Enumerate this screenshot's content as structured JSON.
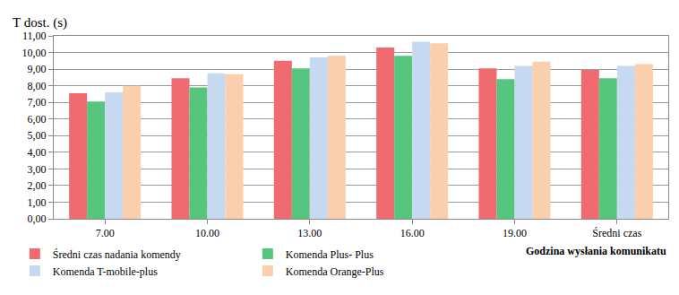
{
  "chart_data": {
    "type": "bar",
    "y_label": "T dost. (s)",
    "x_label": "Godzina wysłania komunikatu",
    "categories": [
      "7.00",
      "10.00",
      "13.00",
      "16.00",
      "19.00",
      "Średni czas"
    ],
    "series": [
      {
        "name": "Średni czas nadania komendy",
        "color": "#ef6b6f",
        "values": [
          7.55,
          8.45,
          9.5,
          10.3,
          9.05,
          8.95
        ]
      },
      {
        "name": "Komenda Plus- Plus",
        "color": "#56c67f",
        "values": [
          7.05,
          7.9,
          9.05,
          9.8,
          8.4,
          8.45
        ]
      },
      {
        "name": "Komenda T-mobile-plus",
        "color": "#c6d9f0",
        "values": [
          7.6,
          8.75,
          9.7,
          10.65,
          9.2,
          9.2
        ]
      },
      {
        "name": "Komenda Orange-Plus",
        "color": "#f9cfad",
        "values": [
          8.0,
          8.7,
          9.8,
          10.55,
          9.45,
          9.3
        ]
      }
    ],
    "ylim": [
      0,
      11
    ],
    "yticks": [
      {
        "value": 0,
        "label": "0,00"
      },
      {
        "value": 1,
        "label": "1,00"
      },
      {
        "value": 2,
        "label": "2,00"
      },
      {
        "value": 3,
        "label": "3,00"
      },
      {
        "value": 4,
        "label": "4,00"
      },
      {
        "value": 5,
        "label": "5,00"
      },
      {
        "value": 6,
        "label": "6,00"
      },
      {
        "value": 7,
        "label": "7,00"
      },
      {
        "value": 8,
        "label": "8,00"
      },
      {
        "value": 9,
        "label": "9,00"
      },
      {
        "value": 10,
        "label": "10,00"
      },
      {
        "value": 11,
        "label": "11,00"
      }
    ],
    "grid": true,
    "legend": "bottom left"
  }
}
